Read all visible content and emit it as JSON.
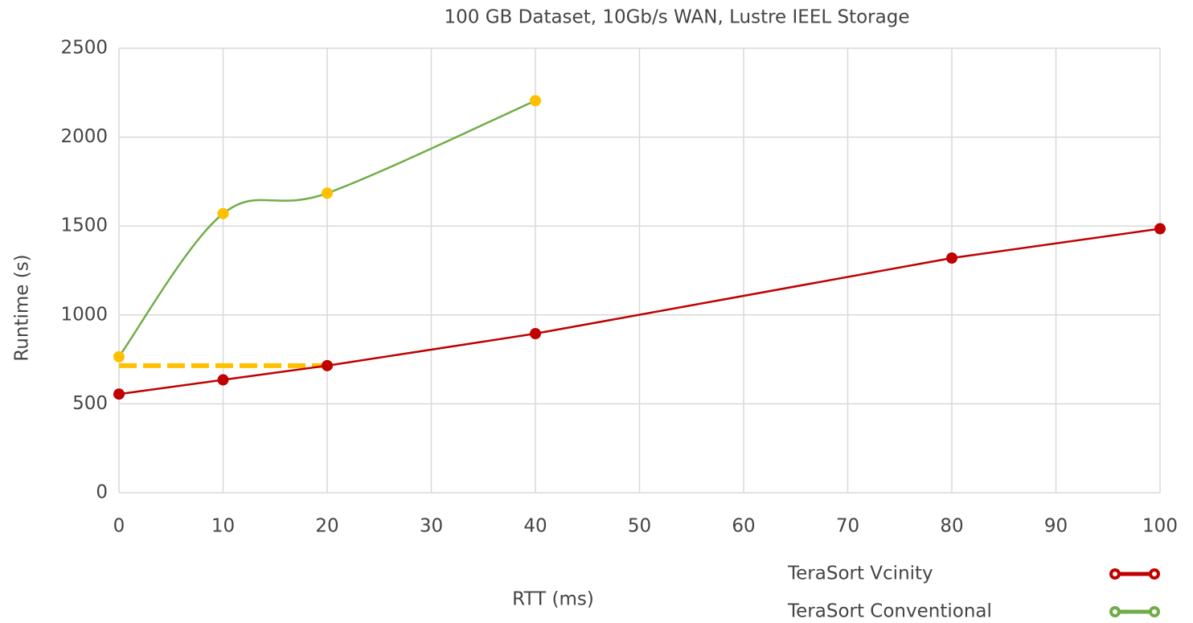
{
  "chart_data": {
    "type": "line",
    "title": "100 GB Dataset, 10Gb/s WAN, Lustre IEEL Storage",
    "xlabel": "RTT (ms)",
    "ylabel": "Runtime (s)",
    "series": [
      {
        "name": "TeraSort Vcinity",
        "color": "#c00000",
        "marker_color": "#c00000",
        "x": [
          0,
          10,
          20,
          40,
          80,
          100
        ],
        "values": [
          555,
          635,
          715,
          895,
          1320,
          1485
        ]
      },
      {
        "name": "TeraSort Conventional",
        "color": "#70ad47",
        "marker_color": "#ffc000",
        "x": [
          0,
          10,
          20,
          40
        ],
        "values": [
          765,
          1570,
          1685,
          2205
        ],
        "smooth": true
      }
    ],
    "reference_line": {
      "value": 715,
      "xrange": [
        0,
        20
      ],
      "color": "#ffc000",
      "dashed": true
    },
    "xlim": [
      0,
      100
    ],
    "xticks": [
      0,
      10,
      20,
      30,
      40,
      50,
      60,
      70,
      80,
      90,
      100
    ],
    "ylim": [
      0,
      2500
    ],
    "yticks": [
      0,
      500,
      1000,
      1500,
      2000,
      2500
    ],
    "grid": true,
    "legend": "bottom-right"
  }
}
